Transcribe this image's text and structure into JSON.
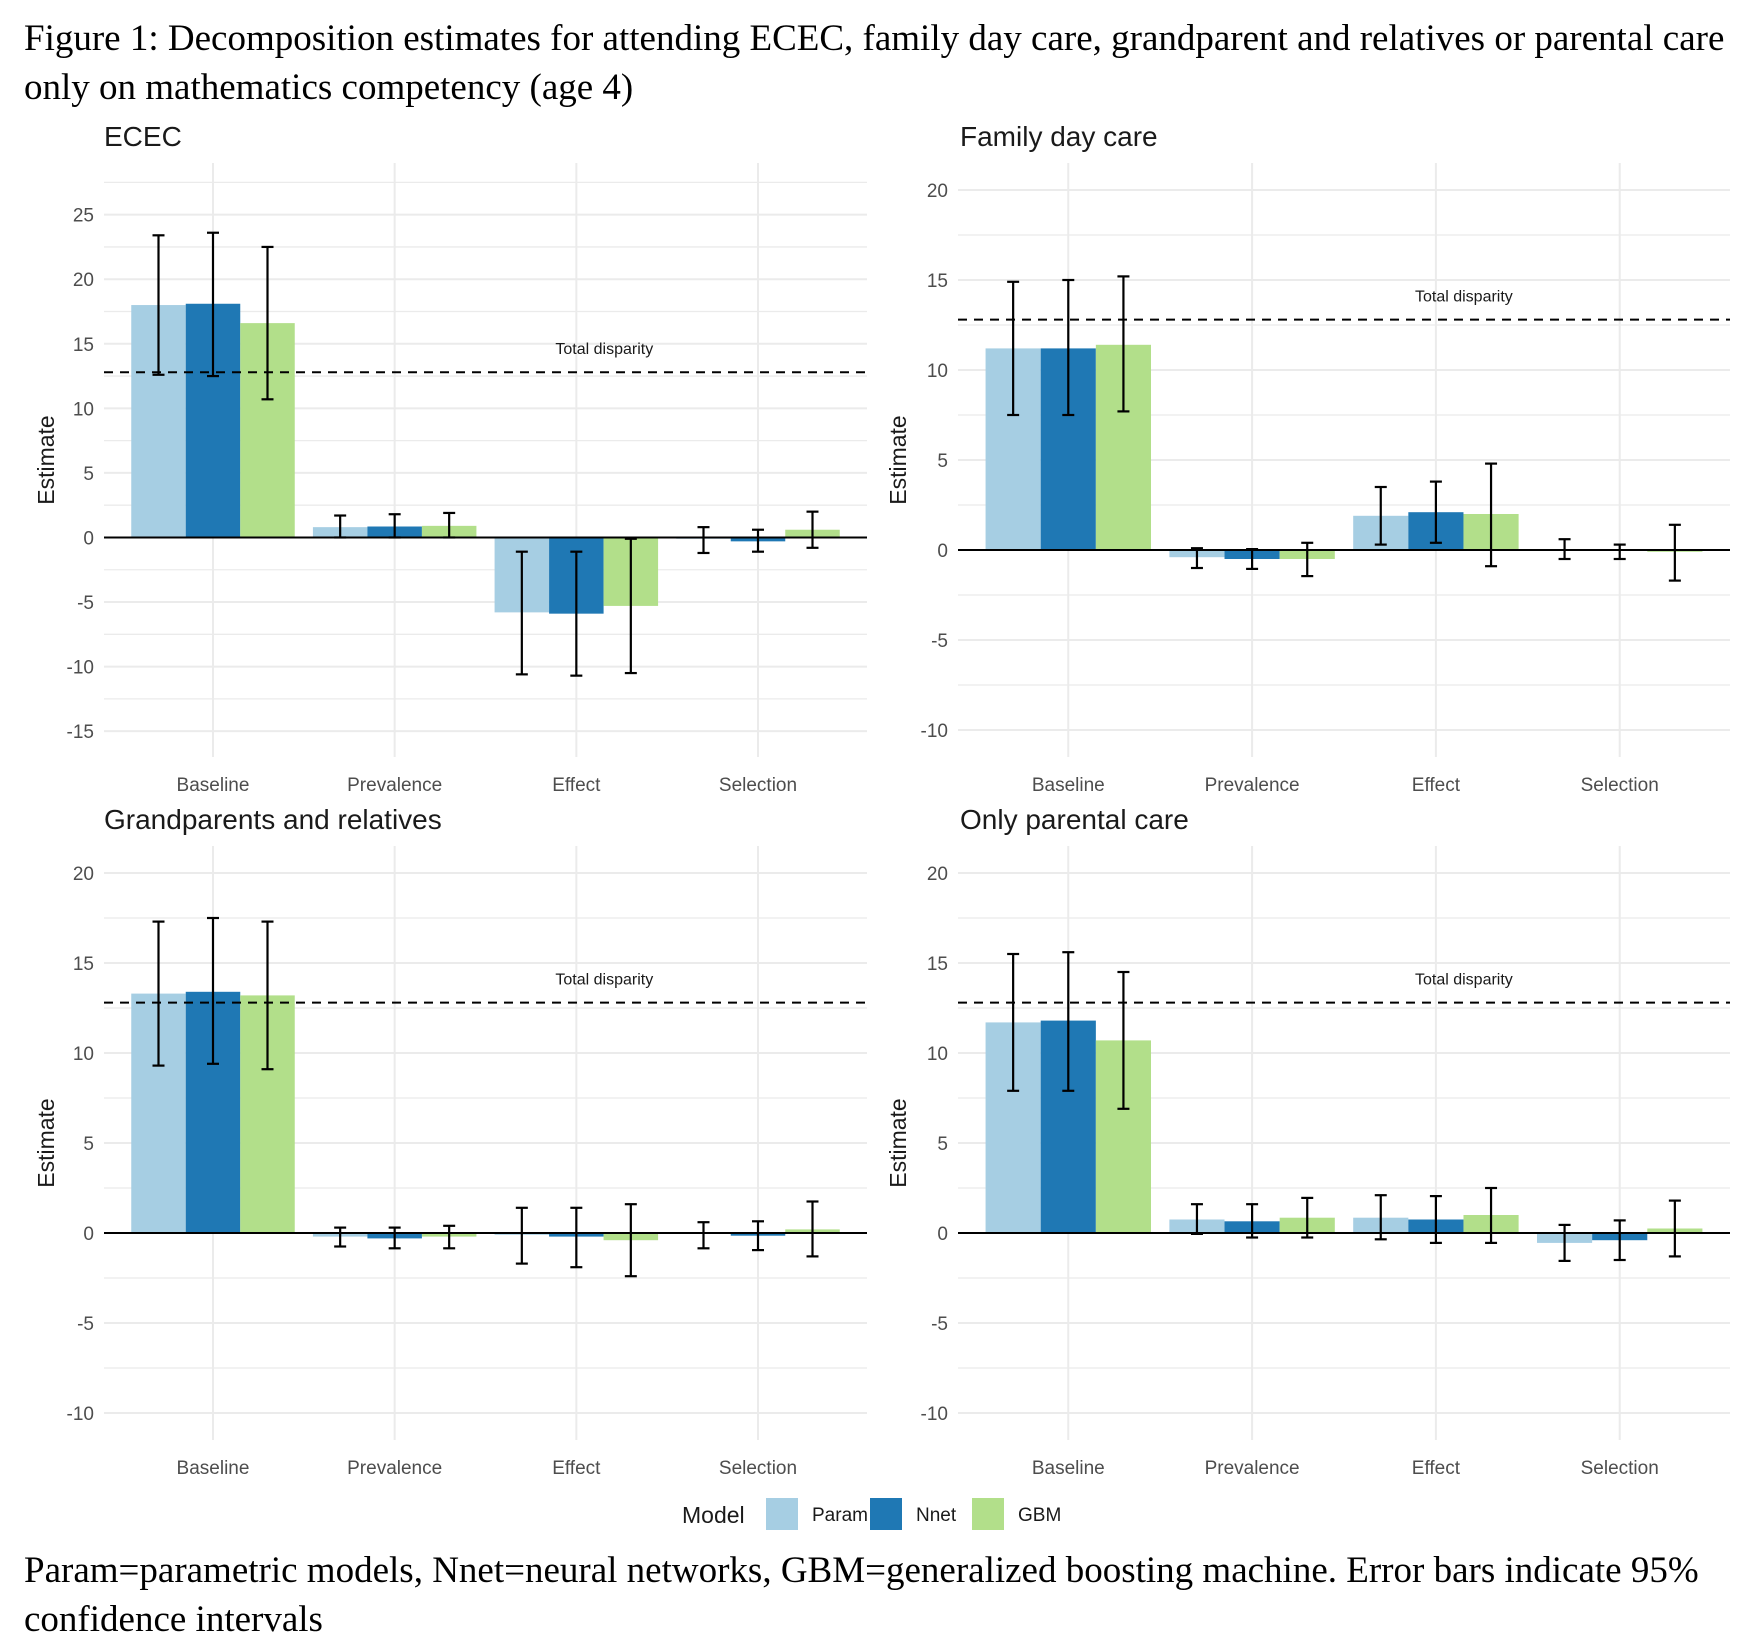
{
  "figure": {
    "title": "Figure 1: Decomposition estimates for attending ECEC, family day care, grandparent and relatives or parental care only on mathematics competency (age 4)",
    "caption": "Param=parametric models, Nnet=neural networks, GBM=generalized boosting machine. Error bars indicate 95% confidence intervals"
  },
  "legend": {
    "title": "Model",
    "items": [
      {
        "name": "Param",
        "color": "#a6cee3"
      },
      {
        "name": "Nnet",
        "color": "#1f78b4"
      },
      {
        "name": "GBM",
        "color": "#b2df8a"
      }
    ]
  },
  "chart_data": [
    {
      "type": "bar",
      "title": "ECEC",
      "xlabel": "",
      "ylabel": "Estimate",
      "categories": [
        "Baseline",
        "Prevalence",
        "Effect",
        "Selection"
      ],
      "yticks": [
        -15,
        -10,
        -5,
        0,
        5,
        10,
        15,
        20,
        25
      ],
      "ylim": [
        -17,
        29
      ],
      "grid": true,
      "reference_line": {
        "label": "Total disparity",
        "value": 12.8,
        "style": "dashed"
      },
      "series": [
        {
          "name": "Param",
          "values": [
            18.0,
            0.8,
            -5.8,
            -0.1
          ],
          "ci_low": [
            12.6,
            0.0,
            -10.6,
            -1.2
          ],
          "ci_high": [
            23.4,
            1.7,
            -1.1,
            0.8
          ]
        },
        {
          "name": "Nnet",
          "values": [
            18.1,
            0.85,
            -5.9,
            -0.3
          ],
          "ci_low": [
            12.5,
            0.0,
            -10.7,
            -1.1
          ],
          "ci_high": [
            23.6,
            1.8,
            -1.1,
            0.6
          ]
        },
        {
          "name": "GBM",
          "values": [
            16.6,
            0.9,
            -5.3,
            0.6
          ],
          "ci_low": [
            10.7,
            0.0,
            -10.5,
            -0.8
          ],
          "ci_high": [
            22.5,
            1.9,
            -0.1,
            2.0
          ]
        }
      ]
    },
    {
      "type": "bar",
      "title": "Family day care",
      "xlabel": "",
      "ylabel": "Estimate",
      "categories": [
        "Baseline",
        "Prevalence",
        "Effect",
        "Selection"
      ],
      "yticks": [
        -10,
        -5,
        0,
        5,
        10,
        15,
        20
      ],
      "ylim": [
        -11.5,
        21.5
      ],
      "grid": true,
      "reference_line": {
        "label": "Total disparity",
        "value": 12.8,
        "style": "dashed"
      },
      "series": [
        {
          "name": "Param",
          "values": [
            11.2,
            -0.4,
            1.9,
            0.0
          ],
          "ci_low": [
            7.5,
            -1.0,
            0.3,
            -0.5
          ],
          "ci_high": [
            14.9,
            0.1,
            3.5,
            0.6
          ]
        },
        {
          "name": "Nnet",
          "values": [
            11.2,
            -0.5,
            2.1,
            -0.05
          ],
          "ci_low": [
            7.5,
            -1.05,
            0.4,
            -0.5
          ],
          "ci_high": [
            15.0,
            0.05,
            3.8,
            0.3
          ]
        },
        {
          "name": "GBM",
          "values": [
            11.4,
            -0.5,
            2.0,
            -0.1
          ],
          "ci_low": [
            7.7,
            -1.45,
            -0.9,
            -1.7
          ],
          "ci_high": [
            15.2,
            0.4,
            4.8,
            1.4
          ]
        }
      ]
    },
    {
      "type": "bar",
      "title": "Grandparents and relatives",
      "xlabel": "",
      "ylabel": "Estimate",
      "categories": [
        "Baseline",
        "Prevalence",
        "Effect",
        "Selection"
      ],
      "yticks": [
        -10,
        -5,
        0,
        5,
        10,
        15,
        20
      ],
      "ylim": [
        -11.5,
        21.5
      ],
      "grid": true,
      "reference_line": {
        "label": "Total disparity",
        "value": 12.8,
        "style": "dashed"
      },
      "series": [
        {
          "name": "Param",
          "values": [
            13.3,
            -0.2,
            -0.1,
            -0.05
          ],
          "ci_low": [
            9.3,
            -0.75,
            -1.7,
            -0.85
          ],
          "ci_high": [
            17.3,
            0.3,
            1.4,
            0.6
          ]
        },
        {
          "name": "Nnet",
          "values": [
            13.4,
            -0.3,
            -0.2,
            -0.15
          ],
          "ci_low": [
            9.4,
            -0.85,
            -1.9,
            -0.95
          ],
          "ci_high": [
            17.5,
            0.3,
            1.4,
            0.65
          ]
        },
        {
          "name": "GBM",
          "values": [
            13.2,
            -0.2,
            -0.4,
            0.2
          ],
          "ci_low": [
            9.1,
            -0.85,
            -2.4,
            -1.3
          ],
          "ci_high": [
            17.3,
            0.4,
            1.6,
            1.75
          ]
        }
      ]
    },
    {
      "type": "bar",
      "title": "Only parental care",
      "xlabel": "",
      "ylabel": "Estimate",
      "categories": [
        "Baseline",
        "Prevalence",
        "Effect",
        "Selection"
      ],
      "yticks": [
        -10,
        -5,
        0,
        5,
        10,
        15,
        20
      ],
      "ylim": [
        -11.5,
        21.5
      ],
      "grid": true,
      "reference_line": {
        "label": "Total disparity",
        "value": 12.8,
        "style": "dashed"
      },
      "series": [
        {
          "name": "Param",
          "values": [
            11.7,
            0.75,
            0.85,
            -0.55
          ],
          "ci_low": [
            7.9,
            -0.05,
            -0.35,
            -1.55
          ],
          "ci_high": [
            15.5,
            1.6,
            2.1,
            0.45
          ]
        },
        {
          "name": "Nnet",
          "values": [
            11.8,
            0.65,
            0.75,
            -0.4
          ],
          "ci_low": [
            7.9,
            -0.25,
            -0.55,
            -1.5
          ],
          "ci_high": [
            15.6,
            1.6,
            2.05,
            0.7
          ]
        },
        {
          "name": "GBM",
          "values": [
            10.7,
            0.85,
            1.0,
            0.25
          ],
          "ci_low": [
            6.9,
            -0.25,
            -0.55,
            -1.3
          ],
          "ci_high": [
            14.5,
            1.95,
            2.5,
            1.8
          ]
        }
      ]
    }
  ]
}
